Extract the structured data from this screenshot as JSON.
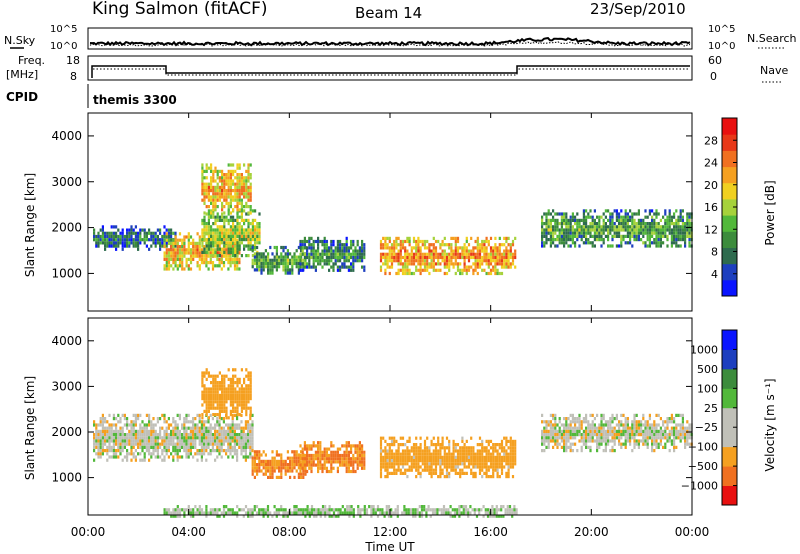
{
  "header": {
    "station": "King Salmon (fitACF)",
    "beam": "Beam 14",
    "date": "23/Sep/2010"
  },
  "strip_labels": {
    "nsky": "N.Sky",
    "nsearch": "N.Search",
    "freq": "Freq.",
    "freq_unit": "[MHz]",
    "nave": "Nave",
    "cpid": "CPID",
    "cpid_value": "themis 3300"
  },
  "strip_ticks": {
    "noise_left": [
      "10^5",
      "10^0"
    ],
    "noise_right": [
      "10^5",
      "10^0"
    ],
    "freq_left": [
      "18",
      "8"
    ],
    "nave_right": [
      "60",
      "0"
    ]
  },
  "colors": {
    "power": [
      "#0a14ff",
      "#1d3fbf",
      "#2e6b4e",
      "#3c8c3c",
      "#52b83a",
      "#a6d23b",
      "#f0d020",
      "#f5a020",
      "#f07020",
      "#e83818",
      "#e81010"
    ],
    "velocity": [
      "#e81010",
      "#f07020",
      "#f5a020",
      "#c0c0b8",
      "#c0c0b8",
      "#52b83a",
      "#3c8c3c",
      "#1d3fbf",
      "#0a14ff"
    ]
  },
  "chart_data": [
    {
      "type": "heatmap",
      "ylabel": "Slant Range [km]",
      "ylim": [
        180,
        4500
      ],
      "yticks": [
        "1000",
        "2000",
        "3000",
        "4000"
      ],
      "colorbar_label": "Power [dB]",
      "colorbar_ticks": [
        "4",
        "8",
        "12",
        "16",
        "20",
        "24",
        "28"
      ],
      "colorbar_range": [
        0,
        32
      ],
      "echo_regions": [
        {
          "t_start": 0.2,
          "t_end": 3.5,
          "range_min": 1550,
          "range_max": 2050,
          "power": 8
        },
        {
          "t_start": 3.0,
          "t_end": 6.0,
          "range_min": 1100,
          "range_max": 1900,
          "power": 22
        },
        {
          "t_start": 4.5,
          "t_end": 6.8,
          "range_min": 1400,
          "range_max": 2400,
          "power": 16
        },
        {
          "t_start": 4.5,
          "t_end": 6.5,
          "range_min": 2300,
          "range_max": 3400,
          "power": 22
        },
        {
          "t_start": 6.5,
          "t_end": 8.6,
          "range_min": 1000,
          "range_max": 1600,
          "power": 12
        },
        {
          "t_start": 8.4,
          "t_end": 11.0,
          "range_min": 1100,
          "range_max": 1800,
          "power": 10
        },
        {
          "t_start": 11.6,
          "t_end": 17.0,
          "range_min": 1000,
          "range_max": 1800,
          "power": 24
        },
        {
          "t_start": 18.0,
          "t_end": 24.0,
          "range_min": 1600,
          "range_max": 2400,
          "power": 12
        }
      ]
    },
    {
      "type": "heatmap",
      "ylabel": "Slant Range [km]",
      "ylim": [
        180,
        4500
      ],
      "yticks": [
        "1000",
        "2000",
        "3000",
        "4000"
      ],
      "colorbar_label": "Velocity [m s⁻¹]",
      "colorbar_ticks": [
        "1000",
        "500",
        "100",
        "25",
        "−25",
        "−100",
        "−500",
        "−1000"
      ],
      "echo_regions": [
        {
          "t_start": 0.2,
          "t_end": 6.5,
          "range_min": 1400,
          "range_max": 2400,
          "velocity": 0
        },
        {
          "t_start": 4.5,
          "t_end": 6.5,
          "range_min": 2300,
          "range_max": 3400,
          "velocity": -200
        },
        {
          "t_start": 6.5,
          "t_end": 8.6,
          "range_min": 1000,
          "range_max": 1600,
          "velocity": -300
        },
        {
          "t_start": 8.4,
          "t_end": 11.0,
          "range_min": 1100,
          "range_max": 1800,
          "velocity": -300
        },
        {
          "t_start": 11.6,
          "t_end": 17.0,
          "range_min": 1000,
          "range_max": 1900,
          "velocity": -150
        },
        {
          "t_start": 18.0,
          "t_end": 24.0,
          "range_min": 1600,
          "range_max": 2400,
          "velocity": 0
        },
        {
          "t_start": 3.0,
          "t_end": 17.0,
          "range_min": 180,
          "range_max": 400,
          "velocity": 50
        }
      ]
    }
  ],
  "time_axis": {
    "label": "Time UT",
    "ticks": [
      "00:00",
      "04:00",
      "08:00",
      "12:00",
      "16:00",
      "20:00",
      "00:00"
    ]
  }
}
